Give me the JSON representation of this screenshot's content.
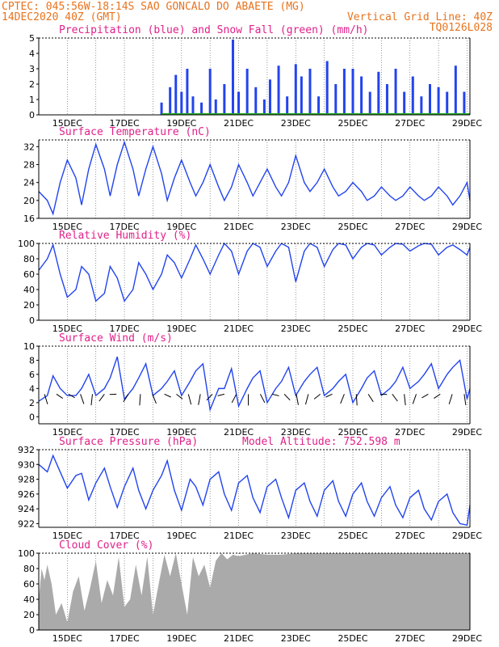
{
  "header": {
    "line1_left": "CPTEC:  045:56W-18:14S  SAO GONCALO DO ABAETE (MG)",
    "line2_left": "14DEC2020 40Z (GMT)",
    "line2_right": "Vertical Grid Line: 40Z",
    "line3_right": "TQ0126L028"
  },
  "colors": {
    "header": "#e8731e",
    "title": "#e0208a",
    "line": "#2244ee",
    "precip": "#2244ee",
    "snow": "#22aa22",
    "cloud": "#aaaaaa"
  },
  "x_ticks": [
    "15DEC",
    "17DEC",
    "19DEC",
    "21DEC",
    "23DEC",
    "25DEC",
    "27DEC",
    "29DEC"
  ],
  "chart_data": [
    {
      "type": "bar",
      "title": "Precipitation (blue) and Snow Fall (green) (mm/h)",
      "ylim": [
        0,
        5
      ],
      "yticks": [
        "0",
        "1",
        "2",
        "3",
        "4",
        "5"
      ],
      "xlim_days": [
        14.0,
        29.1
      ],
      "x": [
        18.3,
        18.6,
        18.8,
        19.0,
        19.2,
        19.4,
        19.7,
        20.0,
        20.2,
        20.5,
        20.8,
        21.0,
        21.3,
        21.6,
        21.9,
        22.1,
        22.4,
        22.7,
        23.0,
        23.2,
        23.5,
        23.8,
        24.1,
        24.4,
        24.7,
        25.0,
        25.3,
        25.6,
        25.9,
        26.2,
        26.5,
        26.8,
        27.1,
        27.4,
        27.7,
        28.0,
        28.3,
        28.6,
        28.9
      ],
      "values": [
        0.8,
        1.8,
        2.6,
        1.5,
        3.0,
        1.2,
        0.8,
        3.0,
        1.0,
        2.0,
        4.9,
        1.5,
        3.0,
        1.8,
        1.0,
        2.3,
        3.2,
        1.2,
        3.3,
        2.5,
        3.0,
        1.2,
        3.5,
        2.0,
        3.0,
        3.0,
        2.5,
        1.5,
        2.8,
        2.0,
        3.0,
        1.5,
        2.5,
        1.2,
        2.0,
        1.8,
        1.5,
        3.2,
        1.5
      ],
      "snow_values": [
        0,
        0,
        0,
        0,
        0,
        0,
        0,
        0,
        0,
        0,
        0,
        0,
        0,
        0,
        0,
        0,
        0,
        0,
        0,
        0,
        0,
        0,
        0,
        0,
        0,
        0,
        0,
        0,
        0,
        0,
        0,
        0,
        0,
        0,
        0,
        0,
        0,
        0,
        0
      ]
    },
    {
      "type": "line",
      "title": "Surface Temperature (nC)",
      "ylim": [
        16,
        33.5
      ],
      "yticks": [
        "16",
        "20",
        "24",
        "28",
        "32"
      ],
      "xlim_days": [
        14.0,
        29.1
      ],
      "x": [
        14.0,
        14.3,
        14.5,
        14.75,
        15.0,
        15.3,
        15.5,
        15.75,
        16.0,
        16.3,
        16.5,
        16.75,
        17.0,
        17.3,
        17.5,
        17.75,
        18.0,
        18.3,
        18.5,
        18.75,
        19.0,
        19.3,
        19.5,
        19.75,
        20.0,
        20.3,
        20.5,
        20.75,
        21.0,
        21.3,
        21.5,
        21.75,
        22.0,
        22.3,
        22.5,
        22.75,
        23.0,
        23.3,
        23.5,
        23.75,
        24.0,
        24.3,
        24.5,
        24.75,
        25.0,
        25.3,
        25.5,
        25.75,
        26.0,
        26.3,
        26.5,
        26.75,
        27.0,
        27.3,
        27.5,
        27.75,
        28.0,
        28.3,
        28.5,
        28.75,
        29.0,
        29.1
      ],
      "values": [
        22,
        20,
        17,
        24,
        29,
        25,
        19,
        27,
        32.5,
        27,
        21,
        28,
        33,
        27,
        21,
        27,
        32,
        26,
        20,
        25,
        29,
        24,
        21,
        24,
        28,
        23,
        20,
        23,
        28,
        24,
        21,
        24,
        27,
        23,
        21,
        24,
        30,
        24,
        22,
        24,
        27,
        23,
        21,
        22,
        24,
        22,
        20,
        21,
        23,
        21,
        20,
        21,
        23,
        21,
        20,
        21,
        23,
        21,
        19,
        21,
        24,
        20
      ]
    },
    {
      "type": "line",
      "title": "Relative Humidity (%)",
      "ylim": [
        0,
        100
      ],
      "yticks": [
        "0",
        "20",
        "40",
        "60",
        "80",
        "100"
      ],
      "xlim_days": [
        14.0,
        29.1
      ],
      "x": [
        14.0,
        14.3,
        14.5,
        14.75,
        15.0,
        15.3,
        15.5,
        15.75,
        16.0,
        16.3,
        16.5,
        16.75,
        17.0,
        17.3,
        17.5,
        17.75,
        18.0,
        18.3,
        18.5,
        18.75,
        19.0,
        19.3,
        19.5,
        19.75,
        20.0,
        20.3,
        20.5,
        20.75,
        21.0,
        21.3,
        21.5,
        21.75,
        22.0,
        22.3,
        22.5,
        22.75,
        23.0,
        23.3,
        23.5,
        23.75,
        24.0,
        24.3,
        24.5,
        24.75,
        25.0,
        25.3,
        25.5,
        25.75,
        26.0,
        26.3,
        26.5,
        26.75,
        27.0,
        27.3,
        27.5,
        27.75,
        28.0,
        28.3,
        28.5,
        28.75,
        29.0,
        29.1
      ],
      "values": [
        65,
        80,
        98,
        60,
        30,
        40,
        70,
        60,
        25,
        35,
        70,
        55,
        25,
        40,
        75,
        60,
        40,
        60,
        85,
        75,
        55,
        80,
        98,
        80,
        60,
        85,
        100,
        90,
        60,
        90,
        100,
        95,
        70,
        90,
        100,
        95,
        50,
        90,
        100,
        95,
        70,
        92,
        100,
        98,
        80,
        95,
        100,
        98,
        85,
        95,
        100,
        99,
        90,
        97,
        100,
        99,
        85,
        95,
        98,
        92,
        85,
        95
      ]
    },
    {
      "type": "line",
      "title": "Surface Wind (m/s)",
      "ylim": [
        -1,
        10
      ],
      "yticks": [
        "0",
        "2",
        "4",
        "6",
        "8",
        "10"
      ],
      "xlim_days": [
        14.0,
        29.1
      ],
      "x": [
        14.0,
        14.3,
        14.5,
        14.75,
        15.0,
        15.3,
        15.5,
        15.75,
        16.0,
        16.3,
        16.5,
        16.75,
        17.0,
        17.3,
        17.5,
        17.75,
        18.0,
        18.3,
        18.5,
        18.75,
        19.0,
        19.3,
        19.5,
        19.75,
        20.0,
        20.3,
        20.5,
        20.75,
        21.0,
        21.3,
        21.5,
        21.75,
        22.0,
        22.3,
        22.5,
        22.75,
        23.0,
        23.3,
        23.5,
        23.75,
        24.0,
        24.3,
        24.5,
        24.75,
        25.0,
        25.3,
        25.5,
        25.75,
        26.0,
        26.3,
        26.5,
        26.75,
        27.0,
        27.3,
        27.5,
        27.75,
        28.0,
        28.3,
        28.5,
        28.75,
        29.0,
        29.1
      ],
      "values": [
        2.2,
        3,
        5.8,
        4,
        3,
        3,
        4,
        6,
        3,
        4,
        5.5,
        8.5,
        2.5,
        4,
        5.5,
        7.5,
        3,
        4,
        5,
        6.5,
        3,
        5,
        6.5,
        7.5,
        1,
        4,
        4,
        6.8,
        1.5,
        4,
        5.5,
        6.5,
        2,
        4,
        5,
        7,
        3,
        5,
        6,
        7,
        3,
        4,
        5,
        6,
        2,
        4,
        5.5,
        6.5,
        3,
        4,
        5,
        7,
        4,
        5,
        6,
        7.5,
        4,
        6,
        7,
        8,
        2.5,
        4
      ]
    },
    {
      "type": "line",
      "title": "Surface Pressure (hPa)",
      "annotation": "Model Altitude: 752.598 m",
      "ylim": [
        921.5,
        932
      ],
      "yticks": [
        "922",
        "924",
        "926",
        "928",
        "930",
        "932"
      ],
      "xlim_days": [
        14.0,
        29.1
      ],
      "x": [
        14.0,
        14.3,
        14.5,
        14.75,
        15.0,
        15.3,
        15.5,
        15.75,
        16.0,
        16.3,
        16.5,
        16.75,
        17.0,
        17.3,
        17.5,
        17.75,
        18.0,
        18.3,
        18.5,
        18.75,
        19.0,
        19.3,
        19.5,
        19.75,
        20.0,
        20.3,
        20.5,
        20.75,
        21.0,
        21.3,
        21.5,
        21.75,
        22.0,
        22.3,
        22.5,
        22.75,
        23.0,
        23.3,
        23.5,
        23.75,
        24.0,
        24.3,
        24.5,
        24.75,
        25.0,
        25.3,
        25.5,
        25.75,
        26.0,
        26.3,
        26.5,
        26.75,
        27.0,
        27.3,
        27.5,
        27.75,
        28.0,
        28.3,
        28.5,
        28.75,
        29.0,
        29.1
      ],
      "values": [
        930,
        929,
        931.2,
        929,
        926.8,
        928.5,
        928.8,
        925.2,
        927.5,
        929.5,
        927,
        924.2,
        927,
        929.5,
        926.5,
        924,
        926.5,
        928.5,
        930.5,
        926.5,
        923.8,
        928,
        927,
        924.5,
        928,
        929,
        926,
        923.8,
        927.5,
        928.5,
        925.5,
        923.5,
        927,
        928,
        925.5,
        922.8,
        926.5,
        927.5,
        925,
        923,
        926.5,
        927.8,
        925,
        923,
        926,
        927.5,
        925,
        923,
        925.5,
        927,
        924.5,
        922.8,
        925.5,
        926.5,
        924,
        922.5,
        925,
        926,
        923.5,
        922,
        921.8,
        924.5
      ]
    },
    {
      "type": "area",
      "title": "Cloud Cover (%)",
      "ylim": [
        0,
        100
      ],
      "yticks": [
        "0",
        "20",
        "40",
        "60",
        "80",
        "100"
      ],
      "xlim_days": [
        14.0,
        29.1
      ],
      "x": [
        14.0,
        14.1,
        14.2,
        14.3,
        14.45,
        14.6,
        14.8,
        15.0,
        15.2,
        15.4,
        15.6,
        15.8,
        16.0,
        16.2,
        16.4,
        16.6,
        16.8,
        17.0,
        17.2,
        17.4,
        17.6,
        17.8,
        18.0,
        18.2,
        18.4,
        18.6,
        18.8,
        19.0,
        19.2,
        19.4,
        19.6,
        19.8,
        20.0,
        20.2,
        20.4,
        20.6,
        20.8,
        21.0,
        21.5,
        22.0,
        22.5,
        23.0,
        23.5,
        24.0,
        29.1
      ],
      "values": [
        40,
        80,
        65,
        85,
        60,
        20,
        35,
        10,
        50,
        70,
        25,
        55,
        90,
        35,
        65,
        45,
        95,
        30,
        40,
        85,
        45,
        95,
        20,
        60,
        98,
        70,
        100,
        60,
        20,
        95,
        70,
        85,
        55,
        90,
        100,
        92,
        98,
        96,
        100,
        98,
        98,
        100,
        100,
        100,
        100
      ]
    }
  ]
}
